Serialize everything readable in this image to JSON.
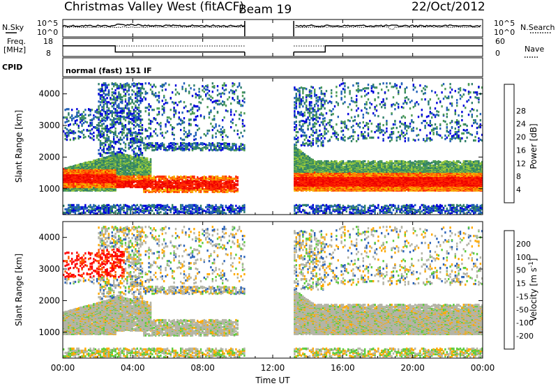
{
  "header": {
    "title": "Christmas Valley West (fitACF)",
    "beam": "Beam 19",
    "date": "22/Oct/2012"
  },
  "side_labels": {
    "nsky": "N.Sky",
    "nsearch": "N.Search",
    "freq": "Freq.",
    "freq_unit": "[MHz]",
    "nave": "Nave",
    "cpid": "CPID",
    "noise_ticks_top": "10^5",
    "noise_ticks_bottom": "10^0",
    "freq_ticks": [
      "18",
      "8"
    ],
    "nave_ticks": [
      "60",
      "0"
    ]
  },
  "cpid_text": "normal (fast) 151 IF",
  "colors": {
    "power_scale": [
      "#0000dd",
      "#1f5fb8",
      "#2f7f6a",
      "#4a9a55",
      "#96c83c",
      "#f5b800",
      "#ff7a00",
      "#ff2a00",
      "#ee0000"
    ],
    "velocity_scale": [
      "#ff0000",
      "#ff5a00",
      "#ffaa00",
      "#b4b4a6",
      "#b4b4a6",
      "#5dcc3e",
      "#35a338",
      "#2c63b8",
      "#1a2ad0"
    ]
  },
  "chart_data": [
    {
      "type": "line",
      "name": "noise",
      "series": [
        {
          "name": "N.Sky"
        },
        {
          "name": "N.Search"
        }
      ],
      "xlim": [
        0,
        24
      ],
      "scale": "log",
      "ylim": [
        1,
        100000
      ],
      "ytick_labels": [
        "10^0",
        "10^5"
      ]
    },
    {
      "type": "line",
      "name": "frequency-nave",
      "series": [
        {
          "name": "Freq.",
          "unit": "MHz"
        },
        {
          "name": "Nave"
        }
      ],
      "xlim": [
        0,
        24
      ],
      "ylim_freq": [
        8,
        18
      ],
      "ylim_nave": [
        0,
        60
      ],
      "freq_steps": [
        {
          "x0": 0,
          "x1": 3,
          "y": 14
        },
        {
          "x0": 3,
          "x1": 10.4,
          "y": 10
        },
        {
          "x0": 13.2,
          "x1": 15,
          "y": 10
        },
        {
          "x0": 15,
          "x1": 24,
          "y": 14
        }
      ]
    },
    {
      "type": "heatmap",
      "name": "power",
      "ylabel": "Slant Range [km]",
      "colorbar_label": "Power [dB]",
      "colorbar_ticks": [
        4,
        8,
        12,
        16,
        20,
        24,
        28
      ],
      "xlim": [
        0,
        24
      ],
      "ylim": [
        180,
        4500
      ],
      "yticks": [
        1000,
        2000,
        3000,
        4000
      ],
      "data_gaps_hours": [
        [
          10.4,
          13.2
        ]
      ]
    },
    {
      "type": "heatmap",
      "name": "velocity",
      "ylabel": "Slant Range [km]",
      "xlabel": "Time UT",
      "colorbar_label": "Velocity [m s^-1]",
      "colorbar_ticks": [
        200,
        100,
        50,
        15,
        -15,
        -50,
        -100,
        -200
      ],
      "xlim": [
        0,
        24
      ],
      "ylim": [
        180,
        4500
      ],
      "yticks": [
        1000,
        2000,
        3000,
        4000
      ],
      "xticks": [
        "00:00",
        "04:00",
        "08:00",
        "12:00",
        "16:00",
        "20:00",
        "00:00"
      ],
      "data_gaps_hours": [
        [
          10.4,
          13.2
        ]
      ]
    }
  ]
}
